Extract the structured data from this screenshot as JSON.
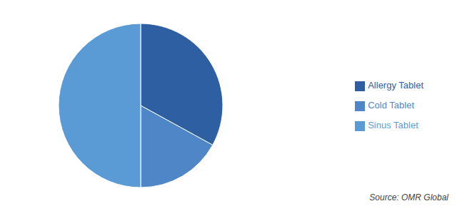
{
  "chart_data": {
    "type": "pie",
    "categories": [
      "Allergy Tablet",
      "Cold Tablet",
      "Sinus Tablet"
    ],
    "values": [
      33,
      17,
      50
    ],
    "colors": [
      "#2e5fa3",
      "#4e86c8",
      "#5b9bd5"
    ],
    "legend": "right",
    "annotation": "Source: OMR Global"
  }
}
